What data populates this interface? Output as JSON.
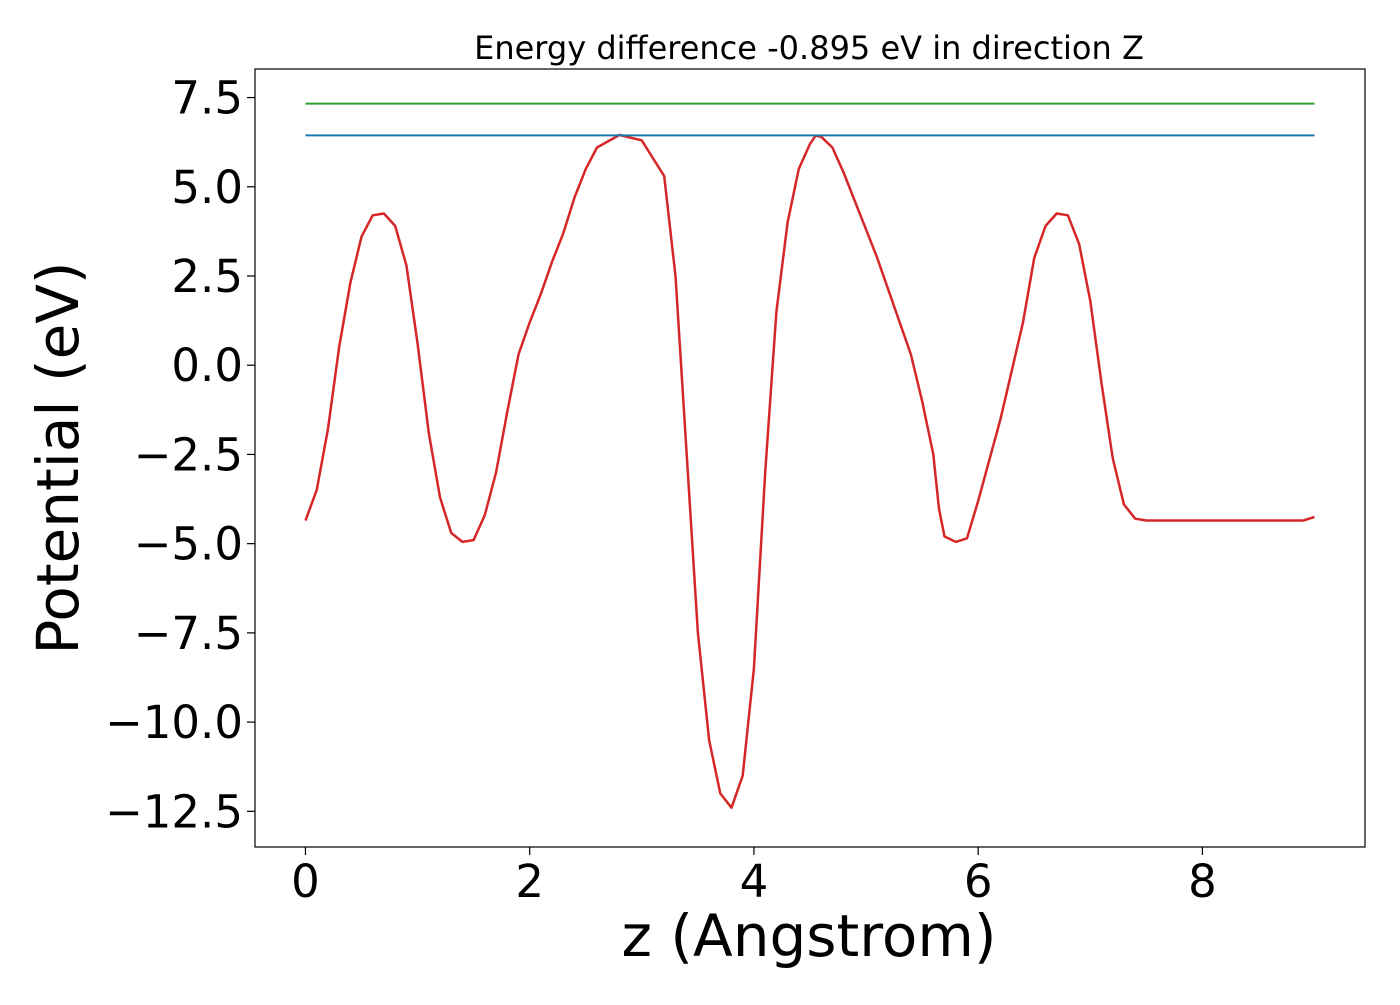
{
  "chart_data": {
    "type": "line",
    "title": "Energy difference -0.895 eV in direction Z",
    "xlabel": "z (Angstrom)",
    "ylabel": "Potential (eV)",
    "xlim": [
      -0.45,
      9.45
    ],
    "ylim": [
      -13.5,
      8.3
    ],
    "xticks": [
      0,
      2,
      4,
      6,
      8
    ],
    "xtick_labels": [
      "0",
      "2",
      "4",
      "6",
      "8"
    ],
    "yticks": [
      7.5,
      5.0,
      2.5,
      0.0,
      -2.5,
      -5.0,
      -7.5,
      -10.0,
      -12.5
    ],
    "ytick_labels": [
      "7.5",
      "5.0",
      "2.5",
      "0.0",
      "−2.5",
      "−5.0",
      "−7.5",
      "−10.0",
      "−12.5"
    ],
    "grid": false,
    "legend": "none",
    "series": [
      {
        "color": "#d62728",
        "x": [
          0.0,
          0.1,
          0.2,
          0.3,
          0.4,
          0.5,
          0.6,
          0.7,
          0.8,
          0.9,
          1.0,
          1.1,
          1.2,
          1.3,
          1.4,
          1.5,
          1.6,
          1.7,
          1.8,
          1.9,
          2.0,
          2.1,
          2.2,
          2.3,
          2.4,
          2.5,
          2.6,
          2.8,
          3.0,
          3.2,
          3.3,
          3.4,
          3.5,
          3.6,
          3.7,
          3.8,
          3.9,
          4.0,
          4.1,
          4.2,
          4.3,
          4.4,
          4.5,
          4.55,
          4.6,
          4.7,
          4.8,
          4.9,
          5.0,
          5.1,
          5.2,
          5.3,
          5.4,
          5.5,
          5.6,
          5.65,
          5.7,
          5.8,
          5.9,
          6.0,
          6.2,
          6.4,
          6.5,
          6.6,
          6.7,
          6.8,
          6.9,
          7.0,
          7.1,
          7.2,
          7.3,
          7.4,
          7.5,
          7.6,
          7.7,
          7.8,
          7.9,
          8.0,
          8.1,
          8.2,
          8.25,
          8.3,
          8.4,
          8.5,
          8.6,
          8.7,
          8.8,
          8.9,
          9.0
        ],
        "y": [
          -4.35,
          -3.5,
          -1.8,
          0.5,
          2.3,
          3.6,
          4.2,
          4.25,
          3.9,
          2.8,
          0.6,
          -1.9,
          -3.7,
          -4.7,
          -4.95,
          -4.9,
          -4.2,
          -3.0,
          -1.3,
          0.3,
          1.2,
          2.0,
          2.9,
          3.7,
          4.7,
          5.5,
          6.1,
          6.45,
          6.3,
          5.3,
          2.5,
          -2.5,
          -7.5,
          -10.5,
          -12.0,
          -12.4,
          -11.5,
          -8.5,
          -3.0,
          1.5,
          4.0,
          5.5,
          6.2,
          6.43,
          6.4,
          6.1,
          5.4,
          4.6,
          3.8,
          3.0,
          2.1,
          1.2,
          0.3,
          -1.0,
          -2.5,
          -4.0,
          -4.8,
          -4.95,
          -4.85,
          -3.8,
          -1.5,
          1.2,
          3.0,
          3.9,
          4.25,
          4.2,
          3.4,
          1.8,
          -0.5,
          -2.6,
          -3.9,
          -4.3,
          -4.35,
          -4.35,
          -4.35,
          -4.35,
          -4.35,
          -4.35,
          -4.35,
          -4.35,
          -4.35,
          -4.35,
          -4.35,
          -4.35,
          -4.35,
          -4.35,
          -4.35,
          -4.35,
          -4.25
        ]
      },
      {
        "color": "#1f77b4",
        "x": [
          0.0,
          9.0
        ],
        "y": [
          6.44,
          6.44
        ]
      },
      {
        "color": "#2ca02c",
        "x": [
          0.0,
          9.0
        ],
        "y": [
          7.33,
          7.33
        ]
      }
    ]
  }
}
